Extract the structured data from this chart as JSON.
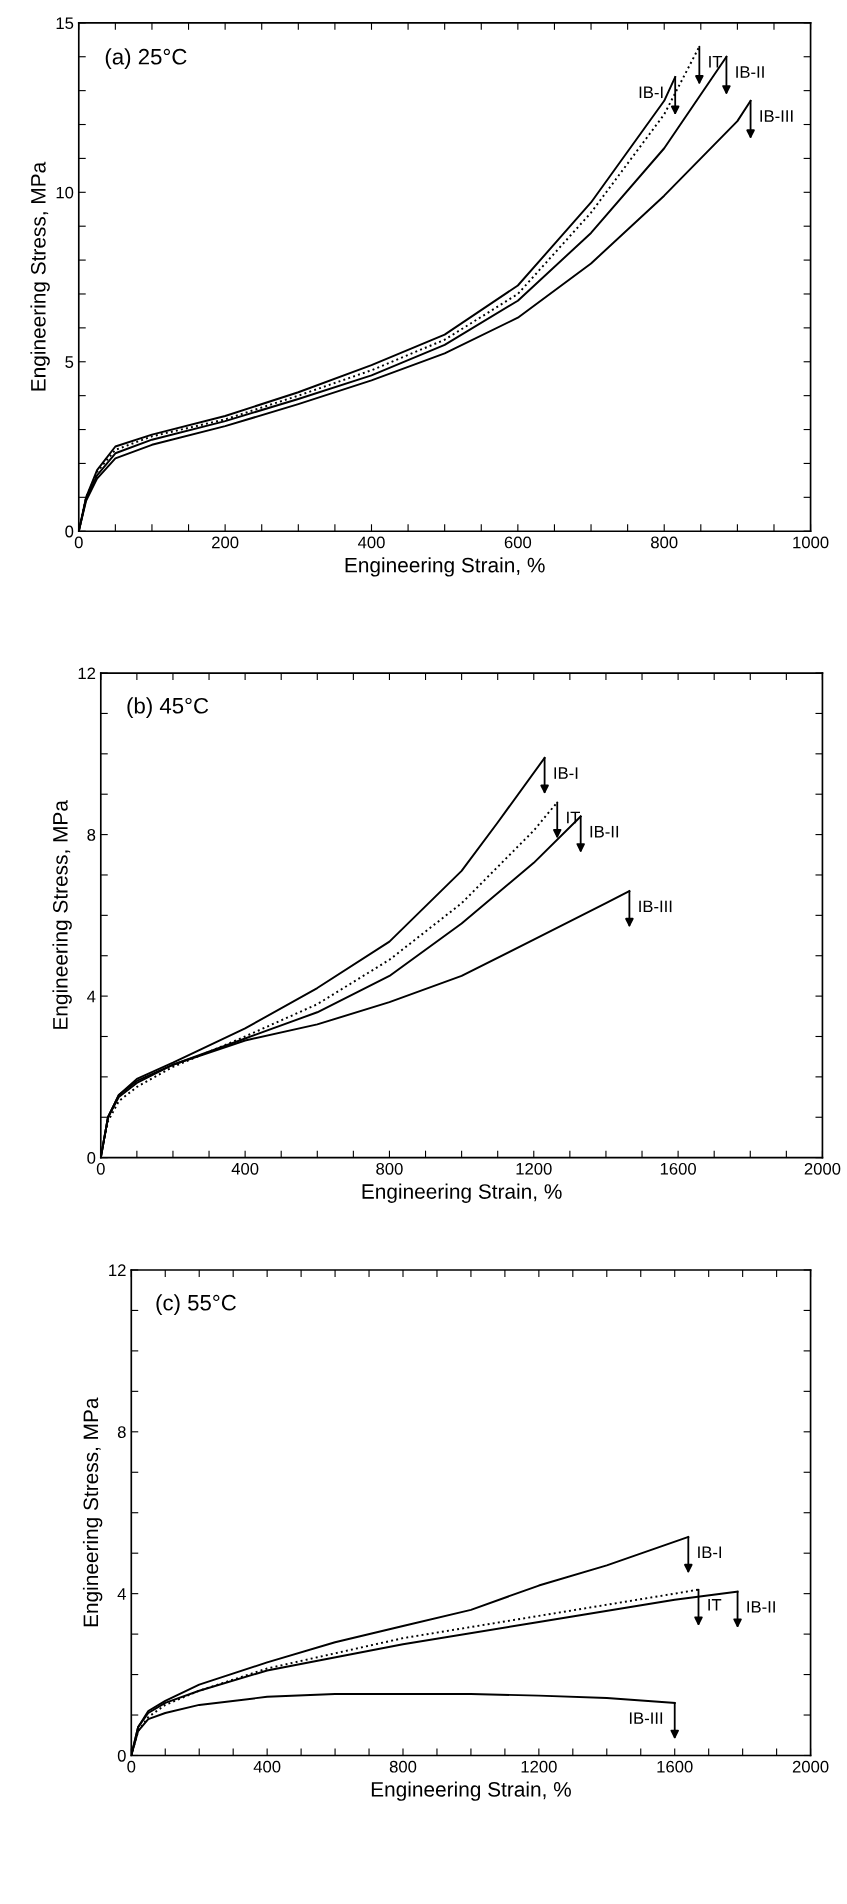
{
  "chart_data": [
    {
      "type": "line",
      "title": "(a) 25°C",
      "xlabel": "Engineering Strain, %",
      "ylabel": "Engineering Stress, MPa",
      "xlim": [
        0,
        1000
      ],
      "ylim": [
        0,
        15
      ],
      "xticks": [
        0,
        {
          "value": 50,
          "label": null
        },
        {
          "value": 100,
          "label": null
        },
        {
          "value": 150,
          "label": null
        },
        200,
        {
          "value": 250,
          "label": null
        },
        {
          "value": 300,
          "label": null
        },
        {
          "value": 350,
          "label": null
        },
        400,
        {
          "value": 450,
          "label": null
        },
        {
          "value": 500,
          "label": null
        },
        {
          "value": 550,
          "label": null
        },
        600,
        {
          "value": 650,
          "label": null
        },
        {
          "value": 700,
          "label": null
        },
        {
          "value": 750,
          "label": null
        },
        800,
        {
          "value": 850,
          "label": null
        },
        {
          "value": 900,
          "label": null
        },
        {
          "value": 950,
          "label": null
        },
        1000
      ],
      "yticks": [
        0,
        {
          "value": 1,
          "label": null
        },
        {
          "value": 2,
          "label": null
        },
        {
          "value": 3,
          "label": null
        },
        {
          "value": 4,
          "label": null
        },
        5,
        {
          "value": 6,
          "label": null
        },
        {
          "value": 7,
          "label": null
        },
        {
          "value": 8,
          "label": null
        },
        {
          "value": 9,
          "label": null
        },
        10,
        {
          "value": 11,
          "label": null
        },
        {
          "value": 12,
          "label": null
        },
        {
          "value": 13,
          "label": null
        },
        {
          "value": 14,
          "label": null
        },
        15
      ],
      "grid": false,
      "legend": false,
      "series": [
        {
          "color": "#000000",
          "line_style": "solid",
          "x": [
            0,
            10,
            25,
            50,
            100,
            200,
            300,
            400,
            500,
            600,
            700,
            800,
            815
          ],
          "values": [
            0,
            1.0,
            1.8,
            2.5,
            2.85,
            3.4,
            4.1,
            4.9,
            5.8,
            7.25,
            9.7,
            12.7,
            13.4
          ]
        },
        {
          "color": "#000000",
          "line_style": "dotted",
          "x": [
            0,
            10,
            25,
            50,
            100,
            200,
            300,
            400,
            500,
            600,
            700,
            800,
            848
          ],
          "values": [
            0,
            1.0,
            1.75,
            2.4,
            2.8,
            3.3,
            4.0,
            4.75,
            5.65,
            7.0,
            9.4,
            12.3,
            14.3
          ]
        },
        {
          "color": "#000000",
          "line_style": "solid",
          "x": [
            0,
            10,
            25,
            50,
            100,
            200,
            300,
            400,
            500,
            600,
            700,
            800,
            885
          ],
          "values": [
            0,
            0.95,
            1.65,
            2.3,
            2.7,
            3.25,
            3.9,
            4.6,
            5.5,
            6.8,
            8.8,
            11.3,
            14.0
          ]
        },
        {
          "color": "#000000",
          "line_style": "solid",
          "x": [
            0,
            10,
            25,
            50,
            100,
            200,
            300,
            400,
            500,
            600,
            700,
            800,
            900,
            918
          ],
          "values": [
            0,
            0.9,
            1.55,
            2.15,
            2.55,
            3.1,
            3.75,
            4.45,
            5.25,
            6.3,
            7.9,
            9.9,
            12.1,
            12.7
          ]
        }
      ],
      "annotations": [
        {
          "text": "IB-I",
          "x": 815,
          "y": 13.4
        },
        {
          "text": "IT",
          "x": 848,
          "y": 14.3
        },
        {
          "text": "IB-II",
          "x": 885,
          "y": 14.0
        },
        {
          "text": "IB-III",
          "x": 918,
          "y": 12.7
        }
      ]
    },
    {
      "type": "line",
      "title": "(b) 45°C",
      "xlabel": "Engineering Strain, %",
      "ylabel": "Engineering Stress, MPa",
      "xlim": [
        0,
        2000
      ],
      "ylim": [
        0,
        12
      ],
      "xticks": [
        0,
        {
          "value": 100,
          "label": null
        },
        {
          "value": 200,
          "label": null
        },
        {
          "value": 300,
          "label": null
        },
        400,
        {
          "value": 500,
          "label": null
        },
        {
          "value": 600,
          "label": null
        },
        {
          "value": 700,
          "label": null
        },
        800,
        {
          "value": 900,
          "label": null
        },
        {
          "value": 1000,
          "label": null
        },
        {
          "value": 1100,
          "label": null
        },
        1200,
        {
          "value": 1300,
          "label": null
        },
        {
          "value": 1400,
          "label": null
        },
        {
          "value": 1500,
          "label": null
        },
        1600,
        {
          "value": 1700,
          "label": null
        },
        {
          "value": 1800,
          "label": null
        },
        {
          "value": 1900,
          "label": null
        },
        2000
      ],
      "yticks": [
        0,
        {
          "value": 1,
          "label": null
        },
        {
          "value": 2,
          "label": null
        },
        {
          "value": 3,
          "label": null
        },
        4,
        {
          "value": 5,
          "label": null
        },
        {
          "value": 6,
          "label": null
        },
        {
          "value": 7,
          "label": null
        },
        8,
        {
          "value": 9,
          "label": null
        },
        {
          "value": 10,
          "label": null
        },
        {
          "value": 11,
          "label": null
        },
        12
      ],
      "grid": false,
      "legend": false,
      "series": [
        {
          "color": "#000000",
          "line_style": "solid",
          "x": [
            0,
            20,
            50,
            100,
            200,
            400,
            600,
            800,
            1000,
            1100,
            1230
          ],
          "values": [
            0,
            1.0,
            1.55,
            1.95,
            2.35,
            3.2,
            4.2,
            5.35,
            7.1,
            8.3,
            9.9
          ]
        },
        {
          "color": "#000000",
          "line_style": "dotted",
          "x": [
            0,
            20,
            50,
            100,
            200,
            400,
            600,
            800,
            1000,
            1200,
            1265
          ],
          "values": [
            0,
            0.9,
            1.4,
            1.75,
            2.25,
            3.0,
            3.8,
            4.9,
            6.3,
            8.1,
            8.8
          ]
        },
        {
          "color": "#000000",
          "line_style": "solid",
          "x": [
            0,
            20,
            50,
            100,
            200,
            400,
            600,
            800,
            1000,
            1200,
            1330
          ],
          "values": [
            0,
            1.0,
            1.55,
            1.9,
            2.3,
            2.95,
            3.6,
            4.5,
            5.8,
            7.3,
            8.45
          ]
        },
        {
          "color": "#000000",
          "line_style": "solid",
          "x": [
            0,
            20,
            50,
            100,
            200,
            400,
            600,
            800,
            1000,
            1200,
            1400,
            1465
          ],
          "values": [
            0,
            1.0,
            1.5,
            1.85,
            2.3,
            2.9,
            3.3,
            3.85,
            4.5,
            5.4,
            6.3,
            6.6
          ]
        }
      ],
      "annotations": [
        {
          "text": "IB-I",
          "x": 1230,
          "y": 9.9
        },
        {
          "text": "IT",
          "x": 1265,
          "y": 8.8
        },
        {
          "text": "IB-II",
          "x": 1330,
          "y": 8.45
        },
        {
          "text": "IB-III",
          "x": 1465,
          "y": 6.6
        }
      ]
    },
    {
      "type": "line",
      "title": "(c) 55°C",
      "xlabel": "Engineering Strain, %",
      "ylabel": "Engineering Stress, MPa",
      "xlim": [
        0,
        2000
      ],
      "ylim": [
        0,
        12
      ],
      "xticks": [
        0,
        {
          "value": 100,
          "label": null
        },
        {
          "value": 200,
          "label": null
        },
        {
          "value": 300,
          "label": null
        },
        400,
        {
          "value": 500,
          "label": null
        },
        {
          "value": 600,
          "label": null
        },
        {
          "value": 700,
          "label": null
        },
        800,
        {
          "value": 900,
          "label": null
        },
        {
          "value": 1000,
          "label": null
        },
        {
          "value": 1100,
          "label": null
        },
        1200,
        {
          "value": 1300,
          "label": null
        },
        {
          "value": 1400,
          "label": null
        },
        {
          "value": 1500,
          "label": null
        },
        1600,
        {
          "value": 1700,
          "label": null
        },
        {
          "value": 1800,
          "label": null
        },
        {
          "value": 1900,
          "label": null
        },
        2000
      ],
      "yticks": [
        0,
        {
          "value": 1,
          "label": null
        },
        {
          "value": 2,
          "label": null
        },
        {
          "value": 3,
          "label": null
        },
        4,
        {
          "value": 5,
          "label": null
        },
        {
          "value": 6,
          "label": null
        },
        {
          "value": 7,
          "label": null
        },
        8,
        {
          "value": 9,
          "label": null
        },
        {
          "value": 10,
          "label": null
        },
        {
          "value": 11,
          "label": null
        },
        12
      ],
      "grid": false,
      "legend": false,
      "series": [
        {
          "color": "#000000",
          "line_style": "solid",
          "x": [
            0,
            20,
            50,
            100,
            200,
            400,
            600,
            800,
            1000,
            1200,
            1400,
            1640
          ],
          "values": [
            0,
            0.7,
            1.1,
            1.35,
            1.75,
            2.3,
            2.8,
            3.2,
            3.6,
            4.2,
            4.7,
            5.4
          ]
        },
        {
          "color": "#000000",
          "line_style": "dotted",
          "x": [
            0,
            20,
            50,
            100,
            200,
            400,
            800,
            1200,
            1600,
            1670
          ],
          "values": [
            0,
            0.6,
            0.95,
            1.25,
            1.6,
            2.15,
            2.9,
            3.45,
            4.0,
            4.1
          ]
        },
        {
          "color": "#000000",
          "line_style": "solid",
          "x": [
            0,
            20,
            50,
            100,
            200,
            400,
            800,
            1200,
            1600,
            1785
          ],
          "values": [
            0,
            0.7,
            1.05,
            1.3,
            1.6,
            2.1,
            2.75,
            3.3,
            3.85,
            4.05
          ]
        },
        {
          "color": "#000000",
          "line_style": "solid",
          "x": [
            0,
            20,
            50,
            100,
            200,
            400,
            600,
            1000,
            1200,
            1400,
            1600
          ],
          "values": [
            0,
            0.6,
            0.9,
            1.05,
            1.25,
            1.45,
            1.52,
            1.52,
            1.48,
            1.42,
            1.3
          ]
        }
      ],
      "annotations": [
        {
          "text": "IB-I",
          "x": 1640,
          "y": 5.4
        },
        {
          "text": "IT",
          "x": 1670,
          "y": 4.1
        },
        {
          "text": "IB-II",
          "x": 1785,
          "y": 4.05
        },
        {
          "text": "IB-III",
          "x": 1600,
          "y": 1.3
        }
      ]
    }
  ]
}
